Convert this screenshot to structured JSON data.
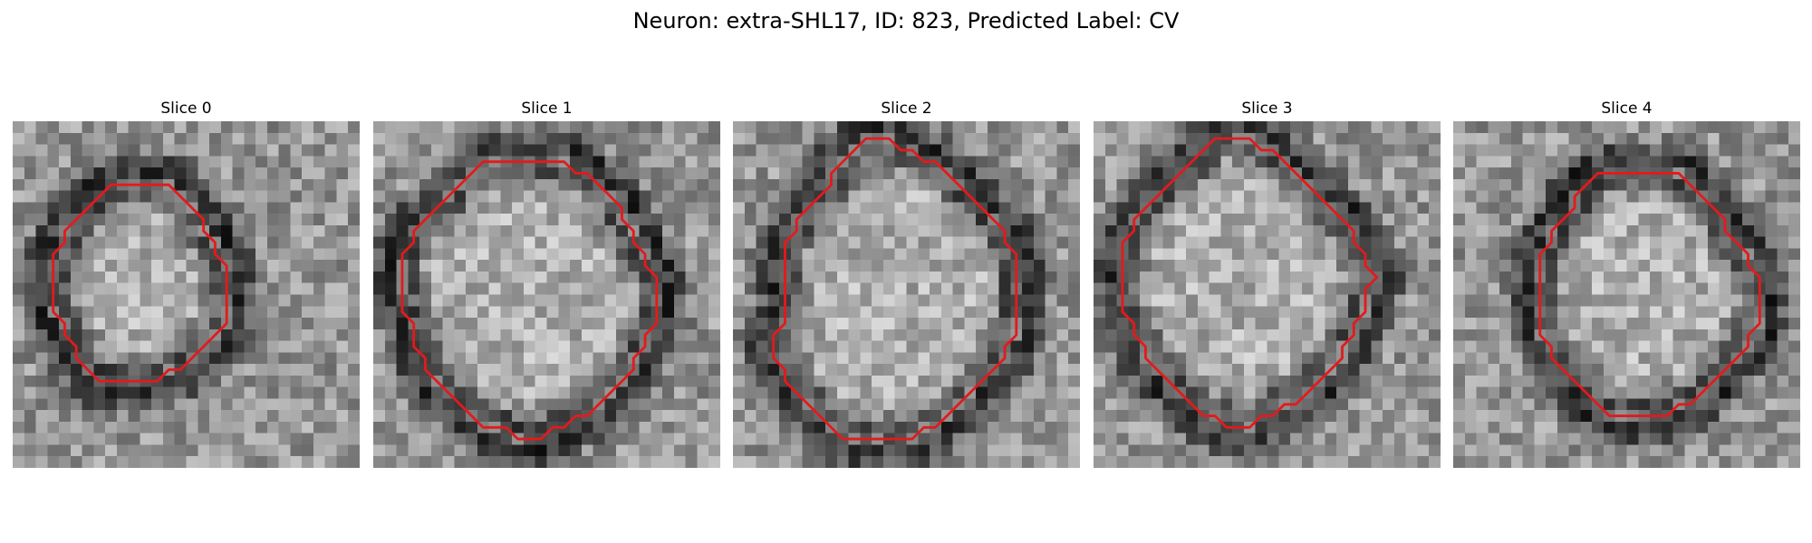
{
  "figure": {
    "title": "Neuron: extra-SHL17, ID: 823, Predicted Label: CV"
  },
  "panels": [
    {
      "title": "Slice 0",
      "contour_color": "#e31a1c",
      "contour": [
        [
          8.5,
          5.5
        ],
        [
          13.5,
          5.5
        ],
        [
          14.5,
          6.5
        ],
        [
          15.5,
          7.5
        ],
        [
          16.5,
          8.5
        ],
        [
          16.5,
          9.5
        ],
        [
          17.5,
          10.5
        ],
        [
          17.5,
          11.5
        ],
        [
          18.5,
          12.5
        ],
        [
          18.5,
          16.5
        ],
        [
          18.5,
          17.5
        ],
        [
          17.5,
          18.5
        ],
        [
          16.5,
          19.5
        ],
        [
          15.5,
          20.5
        ],
        [
          14.5,
          21.5
        ],
        [
          13.5,
          21.5
        ],
        [
          12.5,
          22.5
        ],
        [
          8.5,
          22.5
        ],
        [
          7.5,
          22.5
        ],
        [
          6.5,
          21.5
        ],
        [
          5.5,
          20.5
        ],
        [
          5.5,
          19.5
        ],
        [
          4.5,
          18.5
        ],
        [
          4.5,
          17.5
        ],
        [
          3.5,
          16.5
        ],
        [
          3.5,
          11.5
        ],
        [
          4.5,
          10.5
        ],
        [
          4.5,
          9.5
        ],
        [
          5.5,
          8.5
        ],
        [
          6.5,
          7.5
        ],
        [
          7.5,
          6.5
        ]
      ]
    },
    {
      "title": "Slice 1",
      "contour_color": "#e31a1c",
      "contour": [
        [
          9.5,
          3.5
        ],
        [
          16.5,
          3.5
        ],
        [
          17.5,
          4.5
        ],
        [
          18.5,
          4.5
        ],
        [
          19.5,
          5.5
        ],
        [
          20.5,
          6.5
        ],
        [
          21.5,
          7.5
        ],
        [
          21.5,
          8.5
        ],
        [
          22.5,
          9.5
        ],
        [
          22.5,
          10.5
        ],
        [
          23.5,
          11.5
        ],
        [
          23.5,
          12.5
        ],
        [
          24.5,
          13.5
        ],
        [
          24.5,
          16.5
        ],
        [
          24.5,
          17.5
        ],
        [
          23.5,
          18.5
        ],
        [
          23.5,
          19.5
        ],
        [
          22.5,
          20.5
        ],
        [
          22.5,
          21.5
        ],
        [
          21.5,
          22.5
        ],
        [
          20.5,
          23.5
        ],
        [
          19.5,
          24.5
        ],
        [
          18.5,
          25.5
        ],
        [
          17.5,
          25.5
        ],
        [
          16.5,
          26.5
        ],
        [
          15.5,
          26.5
        ],
        [
          14.5,
          27.5
        ],
        [
          12.5,
          27.5
        ],
        [
          11.5,
          26.5
        ],
        [
          9.5,
          26.5
        ],
        [
          8.5,
          25.5
        ],
        [
          7.5,
          24.5
        ],
        [
          6.5,
          23.5
        ],
        [
          5.5,
          22.5
        ],
        [
          4.5,
          21.5
        ],
        [
          4.5,
          20.5
        ],
        [
          3.5,
          19.5
        ],
        [
          3.5,
          17.5
        ],
        [
          2.5,
          16.5
        ],
        [
          2.5,
          11.5
        ],
        [
          3.5,
          10.5
        ],
        [
          3.5,
          9.5
        ],
        [
          4.5,
          8.5
        ],
        [
          5.5,
          7.5
        ],
        [
          6.5,
          6.5
        ],
        [
          7.5,
          5.5
        ],
        [
          8.5,
          4.5
        ]
      ]
    },
    {
      "title": "Slice 2",
      "contour_color": "#e31a1c",
      "contour": [
        [
          11.5,
          1.5
        ],
        [
          13.5,
          1.5
        ],
        [
          14.5,
          2.5
        ],
        [
          15.5,
          2.5
        ],
        [
          16.5,
          3.5
        ],
        [
          17.5,
          3.5
        ],
        [
          18.5,
          4.5
        ],
        [
          19.5,
          5.5
        ],
        [
          20.5,
          6.5
        ],
        [
          21.5,
          7.5
        ],
        [
          22.5,
          8.5
        ],
        [
          23.5,
          9.5
        ],
        [
          23.5,
          10.5
        ],
        [
          24.5,
          11.5
        ],
        [
          24.5,
          18.5
        ],
        [
          23.5,
          19.5
        ],
        [
          23.5,
          20.5
        ],
        [
          22.5,
          21.5
        ],
        [
          21.5,
          22.5
        ],
        [
          20.5,
          23.5
        ],
        [
          19.5,
          24.5
        ],
        [
          18.5,
          25.5
        ],
        [
          17.5,
          26.5
        ],
        [
          16.5,
          26.5
        ],
        [
          15.5,
          27.5
        ],
        [
          9.5,
          27.5
        ],
        [
          8.5,
          26.5
        ],
        [
          7.5,
          25.5
        ],
        [
          6.5,
          24.5
        ],
        [
          5.5,
          23.5
        ],
        [
          4.5,
          22.5
        ],
        [
          4.5,
          21.5
        ],
        [
          3.5,
          20.5
        ],
        [
          3.5,
          19.5
        ],
        [
          3.5,
          18.5
        ],
        [
          4.5,
          17.5
        ],
        [
          4.5,
          10.5
        ],
        [
          5.5,
          9.5
        ],
        [
          5.5,
          8.5
        ],
        [
          6.5,
          7.5
        ],
        [
          7.5,
          6.5
        ],
        [
          8.5,
          5.5
        ],
        [
          8.5,
          4.5
        ],
        [
          9.5,
          3.5
        ],
        [
          10.5,
          2.5
        ]
      ]
    },
    {
      "title": "Slice 3",
      "contour_color": "#e31a1c",
      "contour": [
        [
          10.5,
          1.5
        ],
        [
          13.5,
          1.5
        ],
        [
          14.5,
          2.5
        ],
        [
          15.5,
          2.5
        ],
        [
          16.5,
          3.5
        ],
        [
          17.5,
          4.5
        ],
        [
          18.5,
          5.5
        ],
        [
          19.5,
          6.5
        ],
        [
          20.5,
          7.5
        ],
        [
          21.5,
          8.5
        ],
        [
          22.5,
          9.5
        ],
        [
          22.5,
          10.5
        ],
        [
          23.5,
          11.5
        ],
        [
          23.5,
          12.5
        ],
        [
          24.5,
          13.5
        ],
        [
          23.5,
          14.5
        ],
        [
          23.5,
          16.5
        ],
        [
          22.5,
          17.5
        ],
        [
          22.5,
          18.5
        ],
        [
          21.5,
          19.5
        ],
        [
          21.5,
          20.5
        ],
        [
          20.5,
          21.5
        ],
        [
          19.5,
          22.5
        ],
        [
          18.5,
          23.5
        ],
        [
          17.5,
          24.5
        ],
        [
          16.5,
          24.5
        ],
        [
          15.5,
          25.5
        ],
        [
          14.5,
          25.5
        ],
        [
          13.5,
          26.5
        ],
        [
          11.5,
          26.5
        ],
        [
          10.5,
          25.5
        ],
        [
          9.5,
          25.5
        ],
        [
          8.5,
          24.5
        ],
        [
          7.5,
          23.5
        ],
        [
          6.5,
          22.5
        ],
        [
          5.5,
          21.5
        ],
        [
          4.5,
          20.5
        ],
        [
          4.5,
          19.5
        ],
        [
          3.5,
          18.5
        ],
        [
          3.5,
          17.5
        ],
        [
          2.5,
          16.5
        ],
        [
          2.5,
          10.5
        ],
        [
          3.5,
          9.5
        ],
        [
          3.5,
          8.5
        ],
        [
          4.5,
          7.5
        ],
        [
          5.5,
          6.5
        ],
        [
          6.5,
          5.5
        ],
        [
          7.5,
          4.5
        ],
        [
          8.5,
          3.5
        ],
        [
          9.5,
          2.5
        ]
      ]
    },
    {
      "title": "Slice 4",
      "contour_color": "#e31a1c",
      "contour": [
        [
          12.5,
          4.5
        ],
        [
          19.5,
          4.5
        ],
        [
          20.5,
          5.5
        ],
        [
          21.5,
          6.5
        ],
        [
          22.5,
          7.5
        ],
        [
          23.5,
          8.5
        ],
        [
          23.5,
          9.5
        ],
        [
          24.5,
          10.5
        ],
        [
          25.5,
          11.5
        ],
        [
          25.5,
          12.5
        ],
        [
          26.5,
          13.5
        ],
        [
          26.5,
          17.5
        ],
        [
          25.5,
          18.5
        ],
        [
          25.5,
          19.5
        ],
        [
          24.5,
          20.5
        ],
        [
          23.5,
          21.5
        ],
        [
          22.5,
          22.5
        ],
        [
          21.5,
          23.5
        ],
        [
          20.5,
          24.5
        ],
        [
          19.5,
          24.5
        ],
        [
          18.5,
          25.5
        ],
        [
          14.5,
          25.5
        ],
        [
          13.5,
          25.5
        ],
        [
          12.5,
          24.5
        ],
        [
          11.5,
          23.5
        ],
        [
          10.5,
          22.5
        ],
        [
          9.5,
          21.5
        ],
        [
          8.5,
          20.5
        ],
        [
          8.5,
          19.5
        ],
        [
          7.5,
          18.5
        ],
        [
          7.5,
          11.5
        ],
        [
          8.5,
          10.5
        ],
        [
          8.5,
          9.5
        ],
        [
          9.5,
          8.5
        ],
        [
          10.5,
          7.5
        ],
        [
          10.5,
          6.5
        ],
        [
          11.5,
          5.5
        ]
      ]
    }
  ]
}
